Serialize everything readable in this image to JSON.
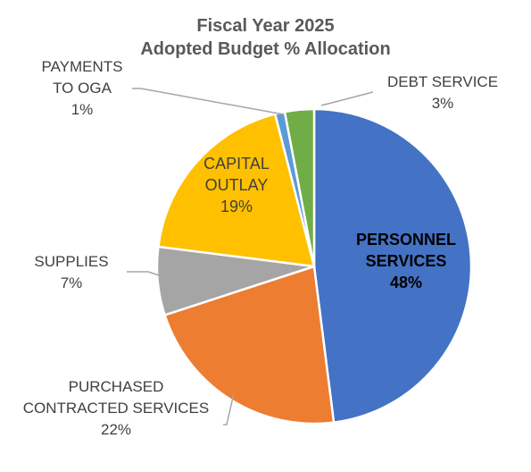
{
  "chart_data": {
    "type": "pie",
    "title": [
      "Fiscal Year 2025",
      "Adopted Budget % Allocation"
    ],
    "start_angle_deg": 0,
    "direction": "clockwise",
    "slices": [
      {
        "label": [
          "PERSONNEL",
          "SERVICES"
        ],
        "value": 48,
        "value_label": "48%",
        "color": "#4472C4"
      },
      {
        "label": [
          "PURCHASED",
          "CONTRACTED SERVICES"
        ],
        "value": 22,
        "value_label": "22%",
        "color": "#ED7D31"
      },
      {
        "label": [
          "SUPPLIES"
        ],
        "value": 7,
        "value_label": "7%",
        "color": "#A5A5A5"
      },
      {
        "label": [
          "CAPITAL",
          "OUTLAY"
        ],
        "value": 19,
        "value_label": "19%",
        "color": "#FFC000"
      },
      {
        "label": [
          "PAYMENTS",
          "TO OGA"
        ],
        "value": 1,
        "value_label": "1%",
        "color": "#5B9BD5"
      },
      {
        "label": [
          "DEBT SERVICE"
        ],
        "value": 3,
        "value_label": "3%",
        "color": "#70AD47"
      }
    ]
  }
}
